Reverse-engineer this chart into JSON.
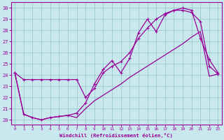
{
  "xlabel": "Windchill (Refroidissement éolien,°C)",
  "bg_color": "#c8e8ee",
  "line_color": "#990099",
  "grid_color": "#99cccc",
  "xlim_min": -0.4,
  "xlim_max": 23.4,
  "ylim_min": 19.6,
  "ylim_max": 30.5,
  "xticks": [
    0,
    1,
    2,
    3,
    4,
    5,
    6,
    7,
    8,
    9,
    10,
    11,
    12,
    13,
    14,
    15,
    16,
    17,
    18,
    19,
    20,
    21,
    22,
    23
  ],
  "yticks": [
    20,
    21,
    22,
    23,
    24,
    25,
    26,
    27,
    28,
    29,
    30
  ],
  "line1_x": [
    0,
    1,
    2,
    3,
    4,
    5,
    6,
    7,
    8,
    9,
    10,
    11,
    12,
    13,
    14,
    15,
    16,
    17,
    18,
    19,
    20,
    21,
    22,
    23
  ],
  "line1_y": [
    24.2,
    23.6,
    23.6,
    23.6,
    23.6,
    23.6,
    23.6,
    23.6,
    22.0,
    22.8,
    24.2,
    24.8,
    25.2,
    26.0,
    27.3,
    28.2,
    29.0,
    29.5,
    29.8,
    30.0,
    29.8,
    27.3,
    25.4,
    24.2
  ],
  "line2_x": [
    0,
    1,
    2,
    3,
    4,
    5,
    6,
    7,
    8,
    9,
    10,
    11,
    12,
    13,
    14,
    15,
    16,
    17,
    18,
    19,
    20,
    21,
    22,
    23
  ],
  "line2_y": [
    24.2,
    20.5,
    20.2,
    20.0,
    20.2,
    20.3,
    20.4,
    20.6,
    21.5,
    23.2,
    24.5,
    25.3,
    24.2,
    25.5,
    27.8,
    29.0,
    27.9,
    29.4,
    29.8,
    29.8,
    29.6,
    28.8,
    24.8,
    24.1
  ],
  "line3_x": [
    0,
    1,
    2,
    3,
    4,
    5,
    6,
    7,
    8,
    9,
    10,
    11,
    12,
    13,
    14,
    15,
    16,
    17,
    18,
    19,
    20,
    21,
    22,
    23
  ],
  "line3_y": [
    24.2,
    20.5,
    20.2,
    20.0,
    20.2,
    20.3,
    20.4,
    20.2,
    21.0,
    21.7,
    22.2,
    22.7,
    23.2,
    23.8,
    24.3,
    24.8,
    25.3,
    25.8,
    26.3,
    26.8,
    27.4,
    27.9,
    23.9,
    24.1
  ]
}
